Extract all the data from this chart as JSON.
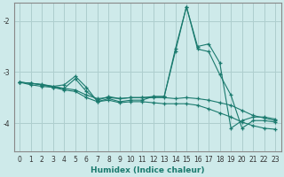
{
  "xlabel": "Humidex (Indice chaleur)",
  "bg_color": "#ceeaea",
  "line_color": "#1a7a6e",
  "grid_color": "#aecece",
  "xlim": [
    -0.5,
    23.5
  ],
  "ylim": [
    -4.55,
    -1.65
  ],
  "yticks": [
    -4,
    -3,
    -2
  ],
  "xticks": [
    0,
    1,
    2,
    3,
    4,
    5,
    6,
    7,
    8,
    9,
    10,
    11,
    12,
    13,
    14,
    15,
    16,
    17,
    18,
    19,
    20,
    21,
    22,
    23
  ],
  "line1_x": [
    0,
    1,
    2,
    3,
    4,
    5,
    6,
    7,
    8,
    9,
    10,
    11,
    12,
    13,
    14,
    15,
    16,
    17,
    18,
    19,
    20,
    21,
    22,
    23
  ],
  "line1_y": [
    -3.2,
    -3.25,
    -3.28,
    -3.3,
    -3.32,
    -3.13,
    -3.38,
    -3.55,
    -3.48,
    -3.52,
    -3.5,
    -3.5,
    -3.48,
    -3.48,
    -2.55,
    -1.72,
    -2.55,
    -2.6,
    -3.05,
    -3.45,
    -4.1,
    -3.95,
    -3.95,
    -3.98
  ],
  "line2_x": [
    0,
    1,
    2,
    3,
    4,
    5,
    6,
    7,
    8,
    9,
    10,
    11,
    12,
    13,
    14,
    15,
    16,
    17,
    18,
    19,
    20,
    21,
    22,
    23
  ],
  "line2_y": [
    -3.2,
    -3.22,
    -3.25,
    -3.28,
    -3.32,
    -3.35,
    -3.45,
    -3.52,
    -3.5,
    -3.52,
    -3.5,
    -3.5,
    -3.5,
    -3.5,
    -3.52,
    -3.5,
    -3.52,
    -3.55,
    -3.6,
    -3.65,
    -3.75,
    -3.85,
    -3.9,
    -3.95
  ],
  "line3_x": [
    0,
    1,
    2,
    3,
    4,
    5,
    6,
    7,
    8,
    9,
    10,
    11,
    12,
    13,
    14,
    15,
    16,
    17,
    18,
    19,
    20,
    21,
    22,
    23
  ],
  "line3_y": [
    -3.2,
    -3.22,
    -3.24,
    -3.28,
    -3.25,
    -3.08,
    -3.3,
    -3.58,
    -3.52,
    -3.58,
    -3.55,
    -3.55,
    -3.48,
    -3.48,
    -2.6,
    -1.72,
    -2.5,
    -2.45,
    -2.82,
    -4.1,
    -3.95,
    -3.88,
    -3.88,
    -3.92
  ],
  "line4_x": [
    0,
    1,
    2,
    3,
    4,
    5,
    6,
    7,
    8,
    9,
    10,
    11,
    12,
    13,
    14,
    15,
    16,
    17,
    18,
    19,
    20,
    21,
    22,
    23
  ],
  "line4_y": [
    -3.2,
    -3.22,
    -3.25,
    -3.3,
    -3.35,
    -3.38,
    -3.5,
    -3.58,
    -3.55,
    -3.6,
    -3.58,
    -3.58,
    -3.6,
    -3.62,
    -3.62,
    -3.62,
    -3.65,
    -3.72,
    -3.8,
    -3.88,
    -3.98,
    -4.05,
    -4.1,
    -4.12
  ]
}
